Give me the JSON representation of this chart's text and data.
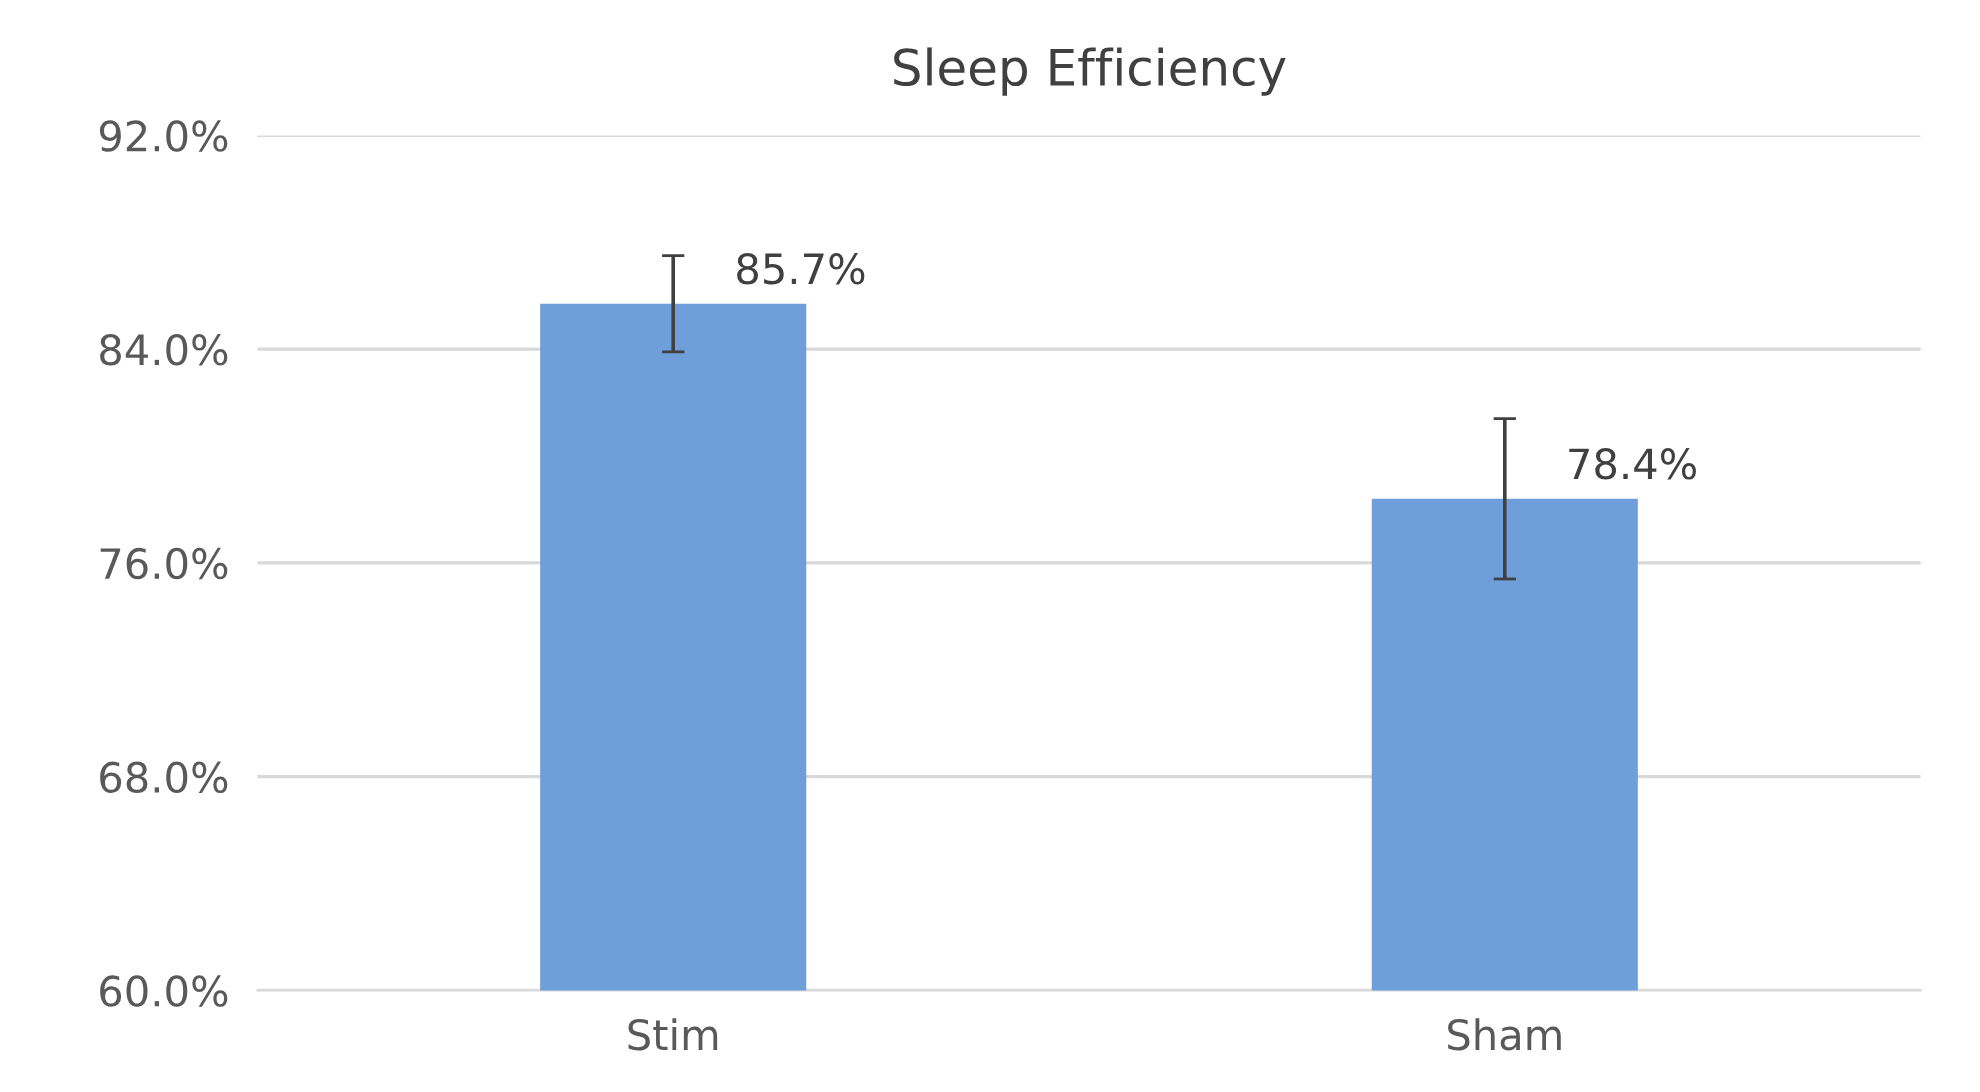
{
  "chart_data": {
    "type": "bar",
    "title": "Sleep Efficiency",
    "categories": [
      "Stim",
      "Sham"
    ],
    "values": [
      85.7,
      78.4
    ],
    "errors": [
      1.8,
      3.0
    ],
    "value_labels": [
      "85.7%",
      "78.4%"
    ],
    "color": "#6f9fdb",
    "ylim": [
      60,
      92
    ],
    "yticks": [
      {
        "value": 60,
        "label": "60.0%"
      },
      {
        "value": 68,
        "label": "68.0%"
      },
      {
        "value": 76,
        "label": "76.0%"
      },
      {
        "value": 84,
        "label": "84.0%"
      },
      {
        "value": 92,
        "label": "92.0%"
      }
    ],
    "grid": "y",
    "legend": false
  }
}
